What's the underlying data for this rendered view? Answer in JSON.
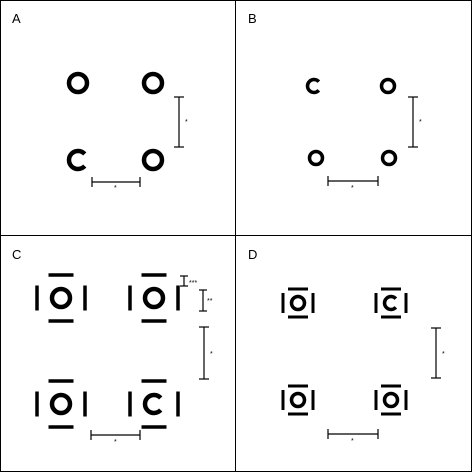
{
  "figure": {
    "panels": [
      {
        "label": "A",
        "optotypes": [
          {
            "type": "ring",
            "gap": "none"
          },
          {
            "type": "ring",
            "gap": "none"
          },
          {
            "type": "ring",
            "gap": "right"
          },
          {
            "type": "ring",
            "gap": "none"
          }
        ],
        "bar_labels": [
          "*",
          "*"
        ]
      },
      {
        "label": "B",
        "optotypes": [
          {
            "type": "ring",
            "gap": "right"
          },
          {
            "type": "ring",
            "gap": "none"
          },
          {
            "type": "ring",
            "gap": "none"
          },
          {
            "type": "ring",
            "gap": "none"
          }
        ],
        "bar_labels": [
          "*",
          "*"
        ]
      },
      {
        "label": "C",
        "optotypes": [
          {
            "type": "ring-with-flankers",
            "gap": "none"
          },
          {
            "type": "ring-with-flankers",
            "gap": "none"
          },
          {
            "type": "ring-with-flankers",
            "gap": "none"
          },
          {
            "type": "ring-with-flankers",
            "gap": "right"
          }
        ],
        "bar_labels": [
          "***",
          "**",
          "*",
          "*"
        ]
      },
      {
        "label": "D",
        "optotypes": [
          {
            "type": "ring-with-flankers",
            "gap": "none"
          },
          {
            "type": "ring-with-flankers",
            "gap": "right"
          },
          {
            "type": "ring-with-flankers",
            "gap": "none"
          },
          {
            "type": "ring-with-flankers",
            "gap": "none"
          }
        ],
        "bar_labels": [
          "*",
          "*"
        ]
      }
    ]
  }
}
